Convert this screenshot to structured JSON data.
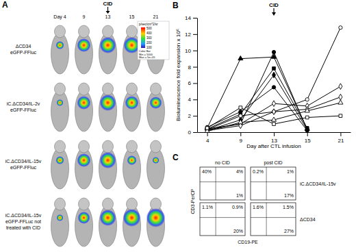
{
  "panel_a": {
    "label": "A",
    "top_label": "CID",
    "days": [
      "Day 4",
      "9",
      "13",
      "15",
      "21"
    ],
    "rows": [
      [
        "ΔCD34",
        "eGFP-FFluc"
      ],
      [
        "iC.ΔCD34/IL-2v",
        "eGFP-FFluc"
      ],
      [
        "iC.ΔCD34/IL-15v",
        "eGFP-FFluc"
      ],
      [
        "iC.ΔCD34/IL-15v",
        "eGFP-FFLuc not",
        "treated with CID"
      ]
    ],
    "colorbar": {
      "unit": "p/sec/cm^2/sr",
      "ticks": [
        "500",
        "400",
        "300",
        "200",
        "100"
      ],
      "title": "Color Bar",
      "min": "Min = 5000",
      "max": "Max = 5e+05"
    }
  },
  "chart_data": {
    "type": "line",
    "panel_label": "B",
    "y_label": "Bioluminescence fold expansion x 10⁶",
    "x_label": "Day after CTL infusion",
    "categories": [
      "4",
      "9",
      "13",
      "15",
      "21"
    ],
    "ylim": [
      0,
      14
    ],
    "yticks": [
      0,
      2,
      4,
      6,
      8,
      10,
      12,
      14
    ],
    "annotations": [
      {
        "text": "CID",
        "x": "13"
      }
    ],
    "series": [
      {
        "color": "#000000",
        "marker": "triangle",
        "values": [
          0.5,
          9.0,
          9.2,
          0.4,
          null
        ]
      },
      {
        "color": "#000000",
        "marker": "circle",
        "values": [
          0.3,
          1.0,
          9.8,
          0.3,
          null
        ]
      },
      {
        "color": "#000000",
        "marker": "square",
        "values": [
          0.4,
          2.2,
          7.8,
          0.5,
          null
        ]
      },
      {
        "color": "#000000",
        "marker": "diamond",
        "values": [
          0.2,
          1.5,
          7.0,
          0.3,
          null
        ]
      },
      {
        "color": "#000000",
        "marker": "circle",
        "values": [
          0.6,
          2.5,
          5.5,
          0.2,
          null
        ]
      },
      {
        "color": "#000000",
        "marker": "circle-open",
        "values": [
          0.3,
          2.0,
          2.5,
          4.0,
          12.8
        ]
      },
      {
        "color": "#000000",
        "marker": "diamond-open",
        "values": [
          0.4,
          1.0,
          3.5,
          3.2,
          5.6
        ]
      },
      {
        "color": "#000000",
        "marker": "diamond-open",
        "values": [
          0.2,
          0.8,
          2.5,
          2.8,
          4.3
        ]
      },
      {
        "color": "#000000",
        "marker": "triangle-open",
        "values": [
          0.1,
          1.2,
          1.5,
          2.6,
          3.6
        ]
      },
      {
        "color": "#000000",
        "marker": "square-open",
        "values": [
          0.5,
          3.0,
          1.0,
          1.8,
          2.0
        ]
      }
    ]
  },
  "panel_c": {
    "label": "C",
    "columns": [
      "no CID",
      "post CID"
    ],
    "rows": [
      "iC.ΔCD34/IL-15v",
      "ΔCD34"
    ],
    "x_label": "CD19-PE",
    "y_label": "CD3-PerCP",
    "plots": [
      [
        {
          "ul": "40%",
          "ur": "4%",
          "lr": "1%"
        },
        {
          "ul": "0.2%",
          "ur": "1%",
          "lr": "17%"
        }
      ],
      [
        {
          "ul": "1.1%",
          "ur": "0.9%",
          "lr": "20%"
        },
        {
          "ul": "1.6%",
          "ur": "1.5%",
          "lr": "27%"
        }
      ]
    ]
  }
}
